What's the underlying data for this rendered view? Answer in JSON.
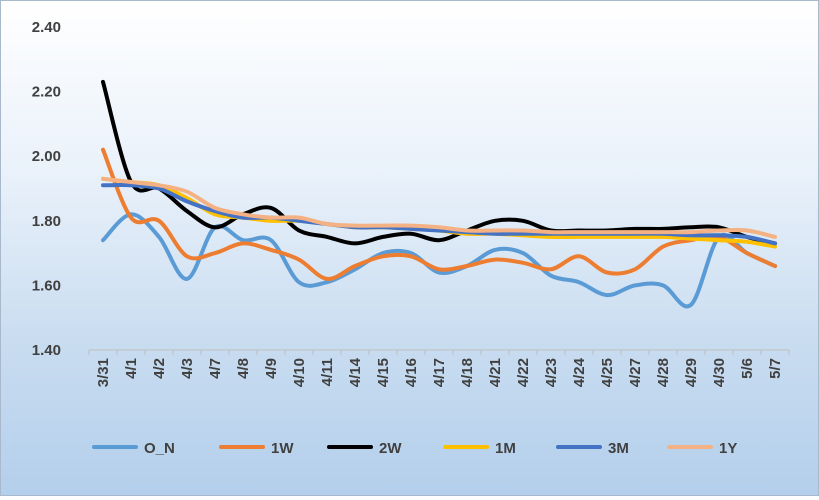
{
  "chart_data": {
    "type": "line",
    "title": "",
    "xlabel": "",
    "ylabel": "",
    "ylim": [
      1.4,
      2.4
    ],
    "yticks": [
      "1.40",
      "1.60",
      "1.80",
      "2.00",
      "2.20",
      "2.40"
    ],
    "grid": false,
    "legend_position": "bottom",
    "categories": [
      "3/31",
      "4/1",
      "4/2",
      "4/3",
      "4/7",
      "4/8",
      "4/9",
      "4/10",
      "4/11",
      "4/14",
      "4/15",
      "4/16",
      "4/17",
      "4/18",
      "4/21",
      "4/22",
      "4/23",
      "4/24",
      "4/25",
      "4/27",
      "4/28",
      "4/29",
      "4/30",
      "5/6",
      "5/7"
    ],
    "series": [
      {
        "name": "O_N",
        "color": "#5b9bd5",
        "values": [
          1.74,
          1.82,
          1.75,
          1.62,
          1.78,
          1.74,
          1.74,
          1.61,
          1.61,
          1.65,
          1.7,
          1.7,
          1.64,
          1.66,
          1.71,
          1.7,
          1.63,
          1.61,
          1.57,
          1.6,
          1.6,
          1.54,
          1.75,
          1.7,
          1.66
        ]
      },
      {
        "name": "1W",
        "color": "#ed7d31",
        "values": [
          2.02,
          1.81,
          1.8,
          1.69,
          1.7,
          1.73,
          1.71,
          1.68,
          1.62,
          1.66,
          1.69,
          1.69,
          1.65,
          1.66,
          1.68,
          1.67,
          1.65,
          1.69,
          1.64,
          1.65,
          1.72,
          1.74,
          1.75,
          1.7,
          1.66
        ]
      },
      {
        "name": "2W",
        "color": "#000000",
        "values": [
          2.23,
          1.92,
          1.9,
          1.83,
          1.78,
          1.82,
          1.84,
          1.77,
          1.75,
          1.73,
          1.75,
          1.76,
          1.74,
          1.77,
          1.8,
          1.8,
          1.77,
          1.77,
          1.77,
          1.775,
          1.775,
          1.78,
          1.78,
          1.75,
          1.73
        ]
      },
      {
        "name": "1M",
        "color": "#ffc000",
        "values": [
          1.93,
          1.92,
          1.91,
          1.87,
          1.82,
          1.81,
          1.8,
          1.8,
          1.79,
          1.78,
          1.78,
          1.775,
          1.77,
          1.76,
          1.76,
          1.755,
          1.75,
          1.75,
          1.75,
          1.75,
          1.75,
          1.745,
          1.74,
          1.735,
          1.72
        ]
      },
      {
        "name": "3M",
        "color": "#4472c4",
        "values": [
          1.91,
          1.91,
          1.9,
          1.86,
          1.83,
          1.81,
          1.81,
          1.8,
          1.79,
          1.78,
          1.78,
          1.775,
          1.77,
          1.765,
          1.76,
          1.76,
          1.76,
          1.76,
          1.76,
          1.76,
          1.76,
          1.755,
          1.755,
          1.75,
          1.73
        ]
      },
      {
        "name": "1Y",
        "color": "#f4b183",
        "values": [
          1.93,
          1.92,
          1.91,
          1.89,
          1.84,
          1.82,
          1.81,
          1.81,
          1.79,
          1.785,
          1.785,
          1.785,
          1.78,
          1.77,
          1.77,
          1.77,
          1.765,
          1.765,
          1.765,
          1.765,
          1.765,
          1.765,
          1.77,
          1.77,
          1.75
        ]
      }
    ]
  }
}
